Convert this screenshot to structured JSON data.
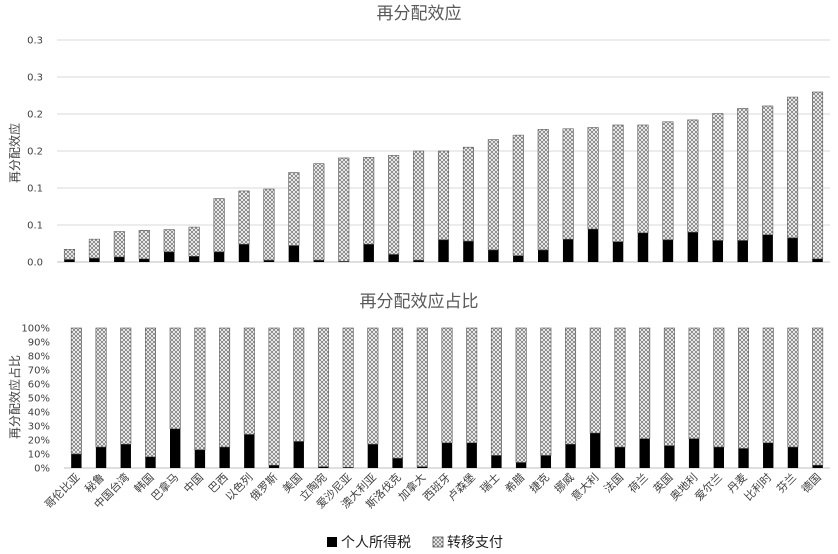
{
  "chart_data": [
    {
      "type": "bar",
      "stacked": true,
      "title": "再分配效应",
      "ylabel": "再分配效应",
      "xlabel": "",
      "ytick_labels": [
        "0.0",
        "0.1",
        "0.1",
        "0.2",
        "0.2",
        "0.3",
        "0.3"
      ],
      "ylim": [
        0,
        0.35
      ],
      "grid": true,
      "categories": [
        "哥伦比亚",
        "秘鲁",
        "中国台湾",
        "韩国",
        "巴拿马",
        "中国",
        "巴西",
        "以色列",
        "俄罗斯",
        "美国",
        "立陶宛",
        "爱沙尼亚",
        "澳大利亚",
        "斯洛伐克",
        "加拿大",
        "西班牙",
        "卢森堡",
        "瑞士",
        "希腊",
        "捷克",
        "挪威",
        "意大利",
        "法国",
        "荷兰",
        "英国",
        "奥地利",
        "爱尔兰",
        "丹麦",
        "比利时",
        "芬兰",
        "德国"
      ],
      "series": [
        {
          "name": "个人所得税",
          "color": "#000000",
          "values": [
            0.004,
            0.006,
            0.008,
            0.005,
            0.016,
            0.009,
            0.016,
            0.028,
            0.003,
            0.026,
            0.003,
            0.001,
            0.028,
            0.012,
            0.003,
            0.035,
            0.033,
            0.019,
            0.01,
            0.019,
            0.036,
            0.052,
            0.032,
            0.046,
            0.035,
            0.047,
            0.034,
            0.034,
            0.043,
            0.038,
            0.005
          ]
        },
        {
          "name": "转移支付",
          "color": "#c8c8c8",
          "pattern": "crosshatch",
          "values": [
            0.016,
            0.03,
            0.04,
            0.045,
            0.035,
            0.046,
            0.084,
            0.084,
            0.112,
            0.115,
            0.152,
            0.163,
            0.137,
            0.156,
            0.172,
            0.14,
            0.148,
            0.174,
            0.19,
            0.19,
            0.174,
            0.16,
            0.184,
            0.17,
            0.186,
            0.177,
            0.2,
            0.208,
            0.203,
            0.222,
            0.263
          ]
        }
      ]
    },
    {
      "type": "bar",
      "stacked": true,
      "percent": true,
      "title": "再分配效应占比",
      "ylabel": "再分配效应占比",
      "xlabel": "",
      "ytick_labels": [
        "0%",
        "10%",
        "20%",
        "30%",
        "40%",
        "50%",
        "60%",
        "70%",
        "80%",
        "90%",
        "100%"
      ],
      "ylim": [
        0,
        100
      ],
      "grid": false,
      "categories": [
        "哥伦比亚",
        "秘鲁",
        "中国台湾",
        "韩国",
        "巴拿马",
        "中国",
        "巴西",
        "以色列",
        "俄罗斯",
        "美国",
        "立陶宛",
        "爱沙尼亚",
        "澳大利亚",
        "斯洛伐克",
        "加拿大",
        "西班牙",
        "卢森堡",
        "瑞士",
        "希腊",
        "捷克",
        "挪威",
        "意大利",
        "法国",
        "荷兰",
        "英国",
        "奥地利",
        "爱尔兰",
        "丹麦",
        "比利时",
        "芬兰",
        "德国"
      ],
      "series": [
        {
          "name": "个人所得税",
          "color": "#000000",
          "values": [
            10,
            15,
            17,
            8,
            28,
            13,
            15,
            24,
            2,
            19,
            1,
            0.5,
            17,
            7,
            1,
            18,
            18,
            9,
            4,
            9,
            17,
            25,
            15,
            21,
            16,
            21,
            15,
            14,
            18,
            15,
            2
          ]
        },
        {
          "name": "转移支付",
          "color": "#c8c8c8",
          "pattern": "crosshatch",
          "values": [
            90,
            85,
            83,
            92,
            72,
            87,
            85,
            76,
            98,
            81,
            99,
            99.5,
            83,
            93,
            99,
            82,
            82,
            91,
            96,
            91,
            83,
            75,
            85,
            79,
            84,
            79,
            85,
            86,
            82,
            85,
            98
          ]
        }
      ]
    }
  ],
  "legend": {
    "items": [
      {
        "label": "个人所得税",
        "color": "#000000"
      },
      {
        "label": "转移支付",
        "color": "#c8c8c8",
        "pattern": "crosshatch"
      }
    ]
  }
}
